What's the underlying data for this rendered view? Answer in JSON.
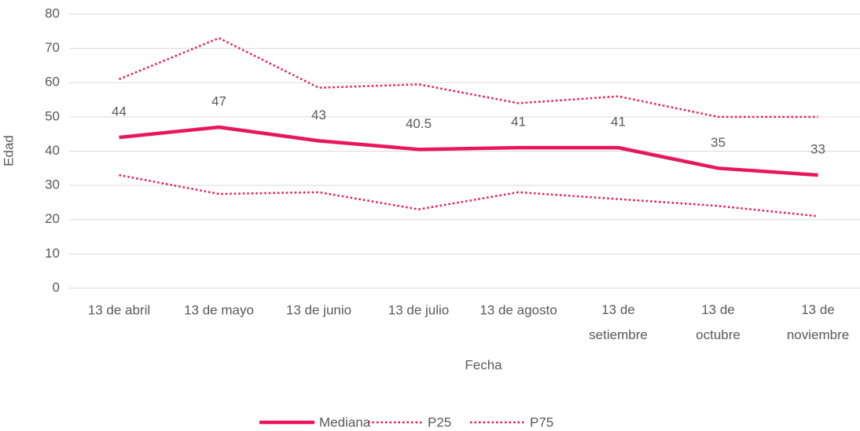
{
  "chart_data": {
    "type": "line",
    "x_label": "Fecha",
    "y_label": "Edad",
    "categories": [
      "13 de abril",
      "13 de mayo",
      "13 de junio",
      "13 de julio",
      "13 de agosto",
      "13 de setiembre",
      "13 de octubre",
      "13 de noviembre"
    ],
    "series": [
      {
        "name": "Mediana",
        "color": "#e8175d",
        "style": "solid",
        "values": [
          44,
          47,
          43,
          40.5,
          41,
          41,
          35,
          33
        ],
        "data_labels": true
      },
      {
        "name": "P25",
        "color": "#e8175d",
        "style": "dotted",
        "values": [
          33,
          27.5,
          28,
          23,
          28,
          26,
          24,
          21
        ]
      },
      {
        "name": "P75",
        "color": "#e8175d",
        "style": "dotted",
        "values": [
          61,
          73,
          58.5,
          59.5,
          54,
          56,
          50,
          50
        ]
      }
    ],
    "ylim": [
      0,
      80
    ],
    "yticks": [
      0,
      10,
      20,
      30,
      40,
      50,
      60,
      70,
      80
    ],
    "grid": true,
    "legend": "bottom"
  }
}
